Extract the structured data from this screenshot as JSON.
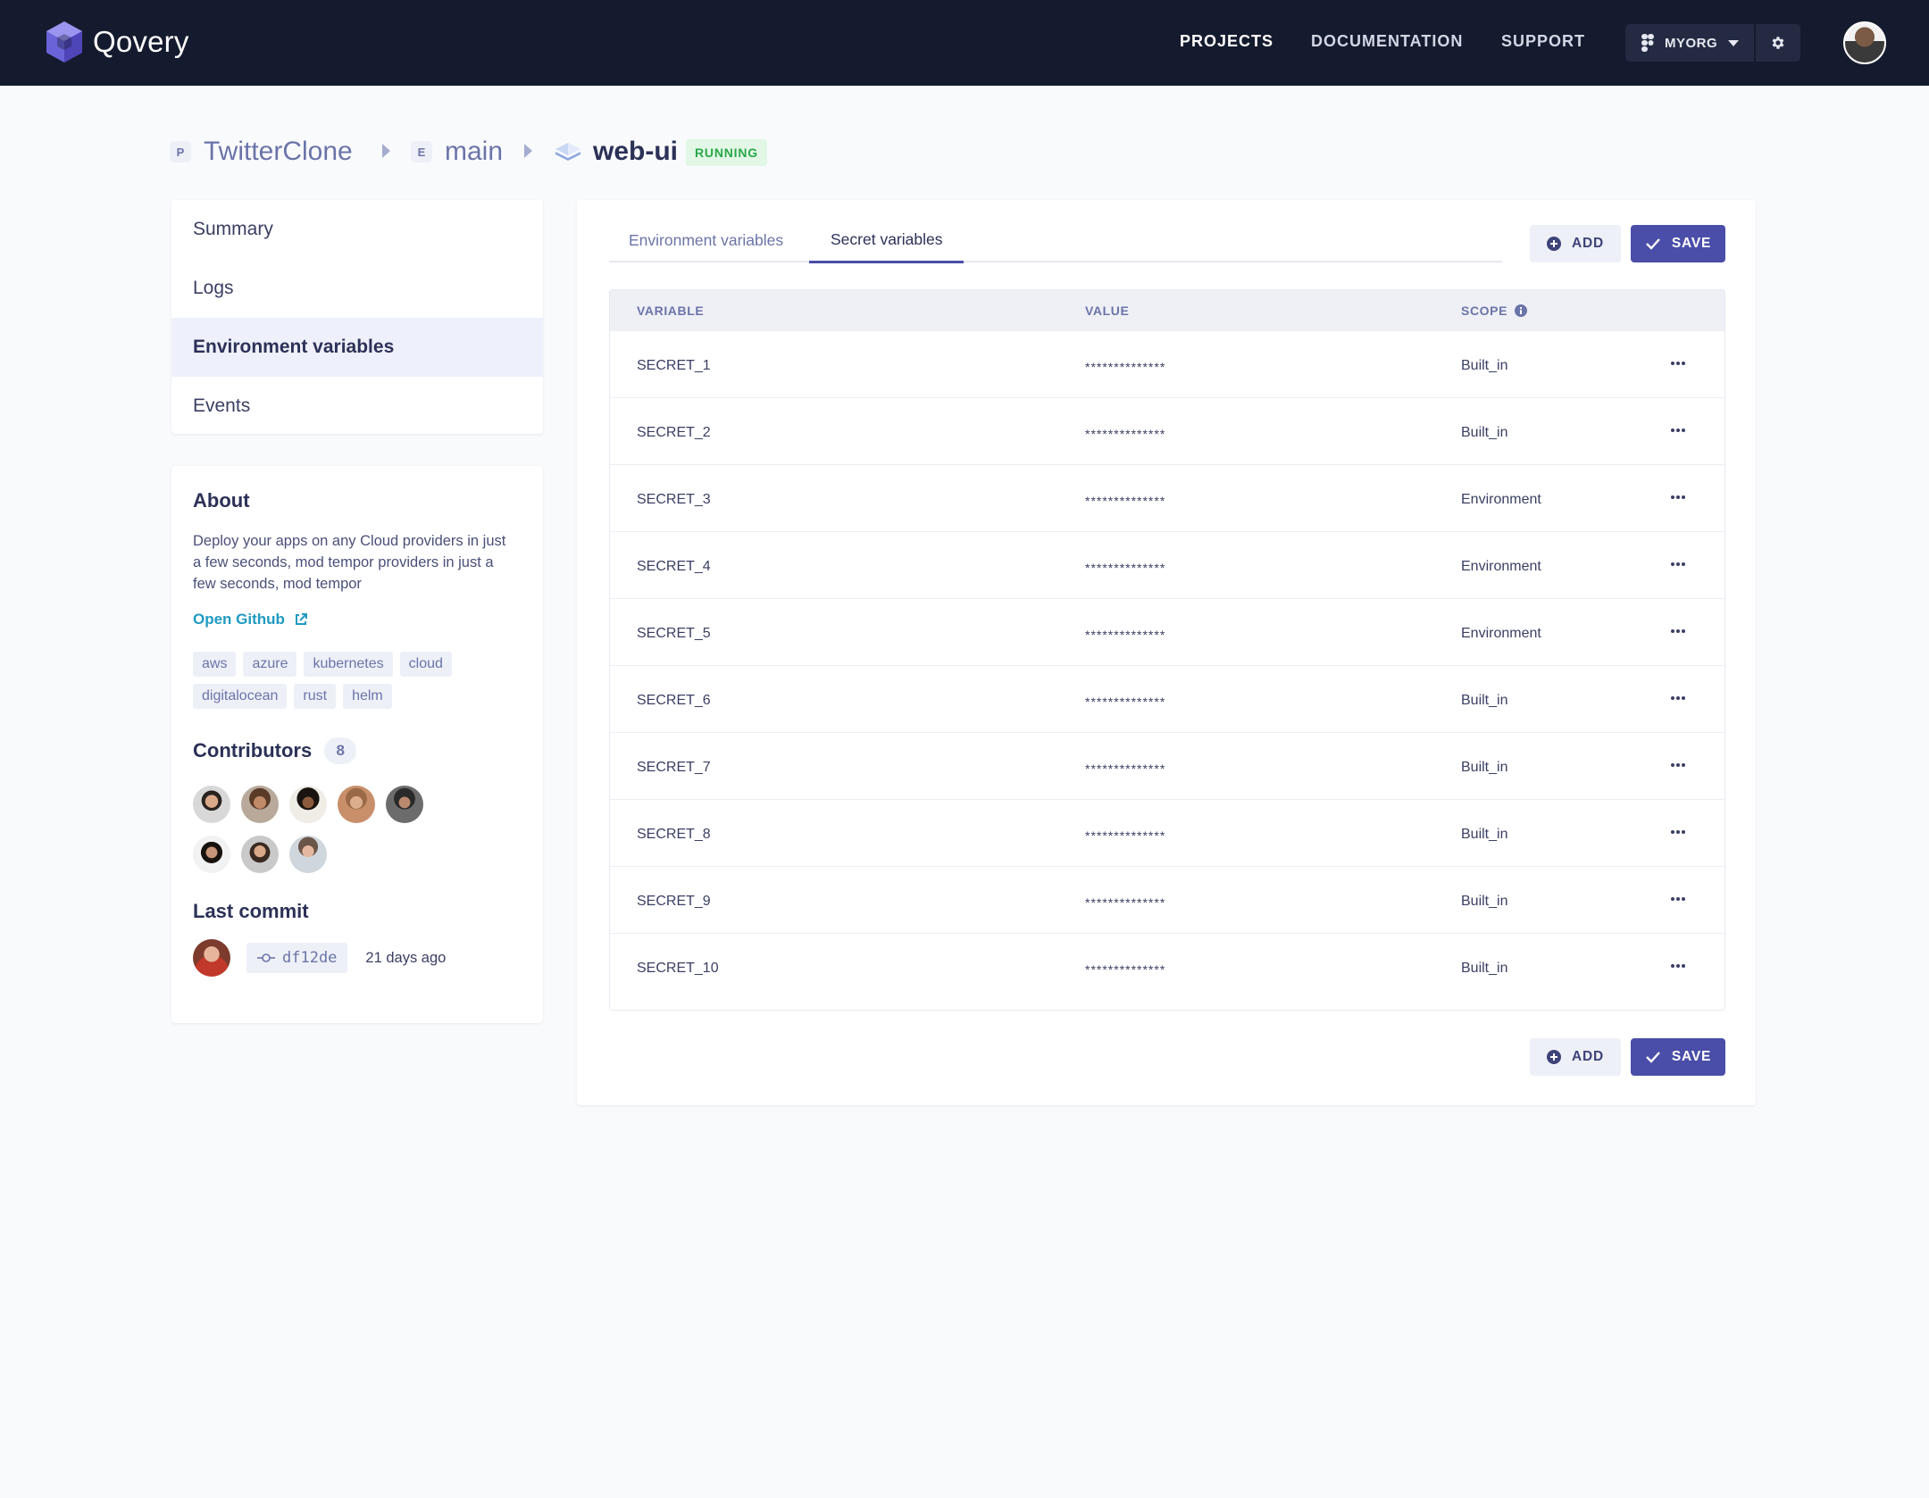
{
  "app": {
    "name": "Qovery"
  },
  "nav": {
    "projects": "PROJECTS",
    "documentation": "DOCUMENTATION",
    "support": "SUPPORT"
  },
  "org": {
    "name": "MYORG"
  },
  "breadcrumb": {
    "project_badge": "P",
    "project": "TwitterClone",
    "env_badge": "E",
    "environment": "main",
    "app": "web-ui",
    "status": "RUNNING"
  },
  "menu": {
    "items": [
      {
        "label": "Summary"
      },
      {
        "label": "Logs"
      },
      {
        "label": "Environment variables"
      },
      {
        "label": "Events"
      }
    ]
  },
  "about": {
    "title": "About",
    "description": "Deploy your apps on any Cloud providers in just a few seconds, mod tempor providers in just a few seconds, mod tempor",
    "github_label": "Open Github",
    "tags": [
      "aws",
      "azure",
      "kubernetes",
      "cloud",
      "digitalocean",
      "rust",
      "helm"
    ],
    "contributors_title": "Contributors",
    "contributors_count": "8",
    "last_commit_title": "Last commit",
    "commit_hash": "df12de",
    "commit_age": "21 days ago"
  },
  "tabs": {
    "env": "Environment variables",
    "secret": "Secret variables"
  },
  "actions": {
    "add": "ADD",
    "save": "SAVE"
  },
  "table": {
    "headers": {
      "variable": "VARIABLE",
      "value": "VALUE",
      "scope": "SCOPE"
    },
    "rows": [
      {
        "name": "SECRET_1",
        "value": "**************",
        "scope": "Built_in"
      },
      {
        "name": "SECRET_2",
        "value": "**************",
        "scope": "Built_in"
      },
      {
        "name": "SECRET_3",
        "value": "**************",
        "scope": "Environment"
      },
      {
        "name": "SECRET_4",
        "value": "**************",
        "scope": "Environment"
      },
      {
        "name": "SECRET_5",
        "value": "**************",
        "scope": "Environment"
      },
      {
        "name": "SECRET_6",
        "value": "**************",
        "scope": "Built_in"
      },
      {
        "name": "SECRET_7",
        "value": "**************",
        "scope": "Built_in"
      },
      {
        "name": "SECRET_8",
        "value": "**************",
        "scope": "Built_in"
      },
      {
        "name": "SECRET_9",
        "value": "**************",
        "scope": "Built_in"
      },
      {
        "name": "SECRET_10",
        "value": "**************",
        "scope": "Built_in"
      }
    ]
  },
  "colors": {
    "accent": "#4a4ea8",
    "topbar": "#151b2e",
    "running": "#2aa74a",
    "link": "#1e9ac0"
  }
}
